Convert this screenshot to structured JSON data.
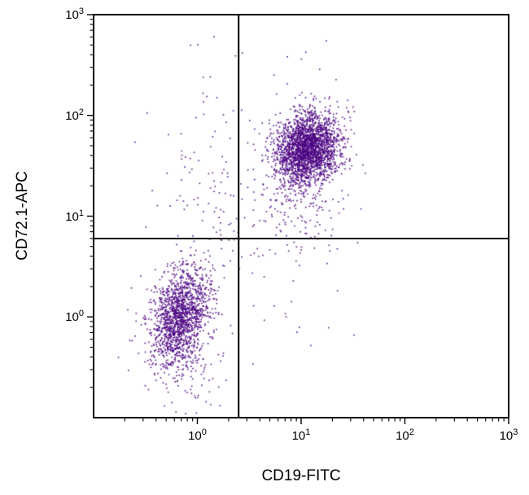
{
  "chart_data": {
    "type": "scatter",
    "title": "",
    "xlabel": "CD19-FITC",
    "ylabel": "CD72.1-APC",
    "x_scale": "log",
    "y_scale": "log",
    "xlim": [
      0.1,
      1000
    ],
    "ylim": [
      0.1,
      1000
    ],
    "tick_label_base": "10",
    "x_tick_exponents": [
      0,
      1,
      2,
      3
    ],
    "y_tick_exponents": [
      0,
      1,
      2,
      3
    ],
    "grid": "off",
    "legend": "none",
    "point_color": "#4B0082",
    "axis_color": "#000000",
    "gates": {
      "vertical_x": 2.5,
      "horizontal_y": 6.0
    },
    "populations": [
      {
        "name": "CD19+ CD72.1+ main cluster",
        "n": 2400,
        "center": [
          11.5,
          48
        ],
        "sigma_dex": [
          0.16,
          0.18
        ],
        "rho": 0.15,
        "seed": 101
      },
      {
        "name": "CD19+ CD72.1+ low tail",
        "n": 160,
        "center": [
          11,
          14
        ],
        "sigma_dex": [
          0.22,
          0.25
        ],
        "rho": 0.2,
        "seed": 202
      },
      {
        "name": "CD19+ CD72.1+ high outliers",
        "n": 12,
        "center": [
          14,
          130
        ],
        "sigma_dex": [
          0.3,
          0.3
        ],
        "rho": 0.0,
        "seed": 808
      },
      {
        "name": "CD19- CD72.1- main cluster",
        "n": 1500,
        "center": [
          0.68,
          1.0
        ],
        "sigma_dex": [
          0.14,
          0.24
        ],
        "rho": 0.25,
        "seed": 303
      },
      {
        "name": "CD19- CD72.1- low tail",
        "n": 120,
        "center": [
          0.75,
          0.35
        ],
        "sigma_dex": [
          0.18,
          0.3
        ],
        "rho": 0.0,
        "seed": 404
      },
      {
        "name": "diagonal bridge",
        "n": 130,
        "center": [
          1.6,
          4.5
        ],
        "sigma_dex": [
          0.45,
          0.55
        ],
        "rho": 0.85,
        "seed": 505
      },
      {
        "name": "upper-left sparse",
        "n": 70,
        "center": [
          1.1,
          40
        ],
        "sigma_dex": [
          0.28,
          0.45
        ],
        "rho": 0.1,
        "seed": 606
      },
      {
        "name": "lower-right sparse",
        "n": 20,
        "center": [
          8,
          1.5
        ],
        "sigma_dex": [
          0.4,
          0.45
        ],
        "rho": 0.0,
        "seed": 707
      }
    ]
  }
}
